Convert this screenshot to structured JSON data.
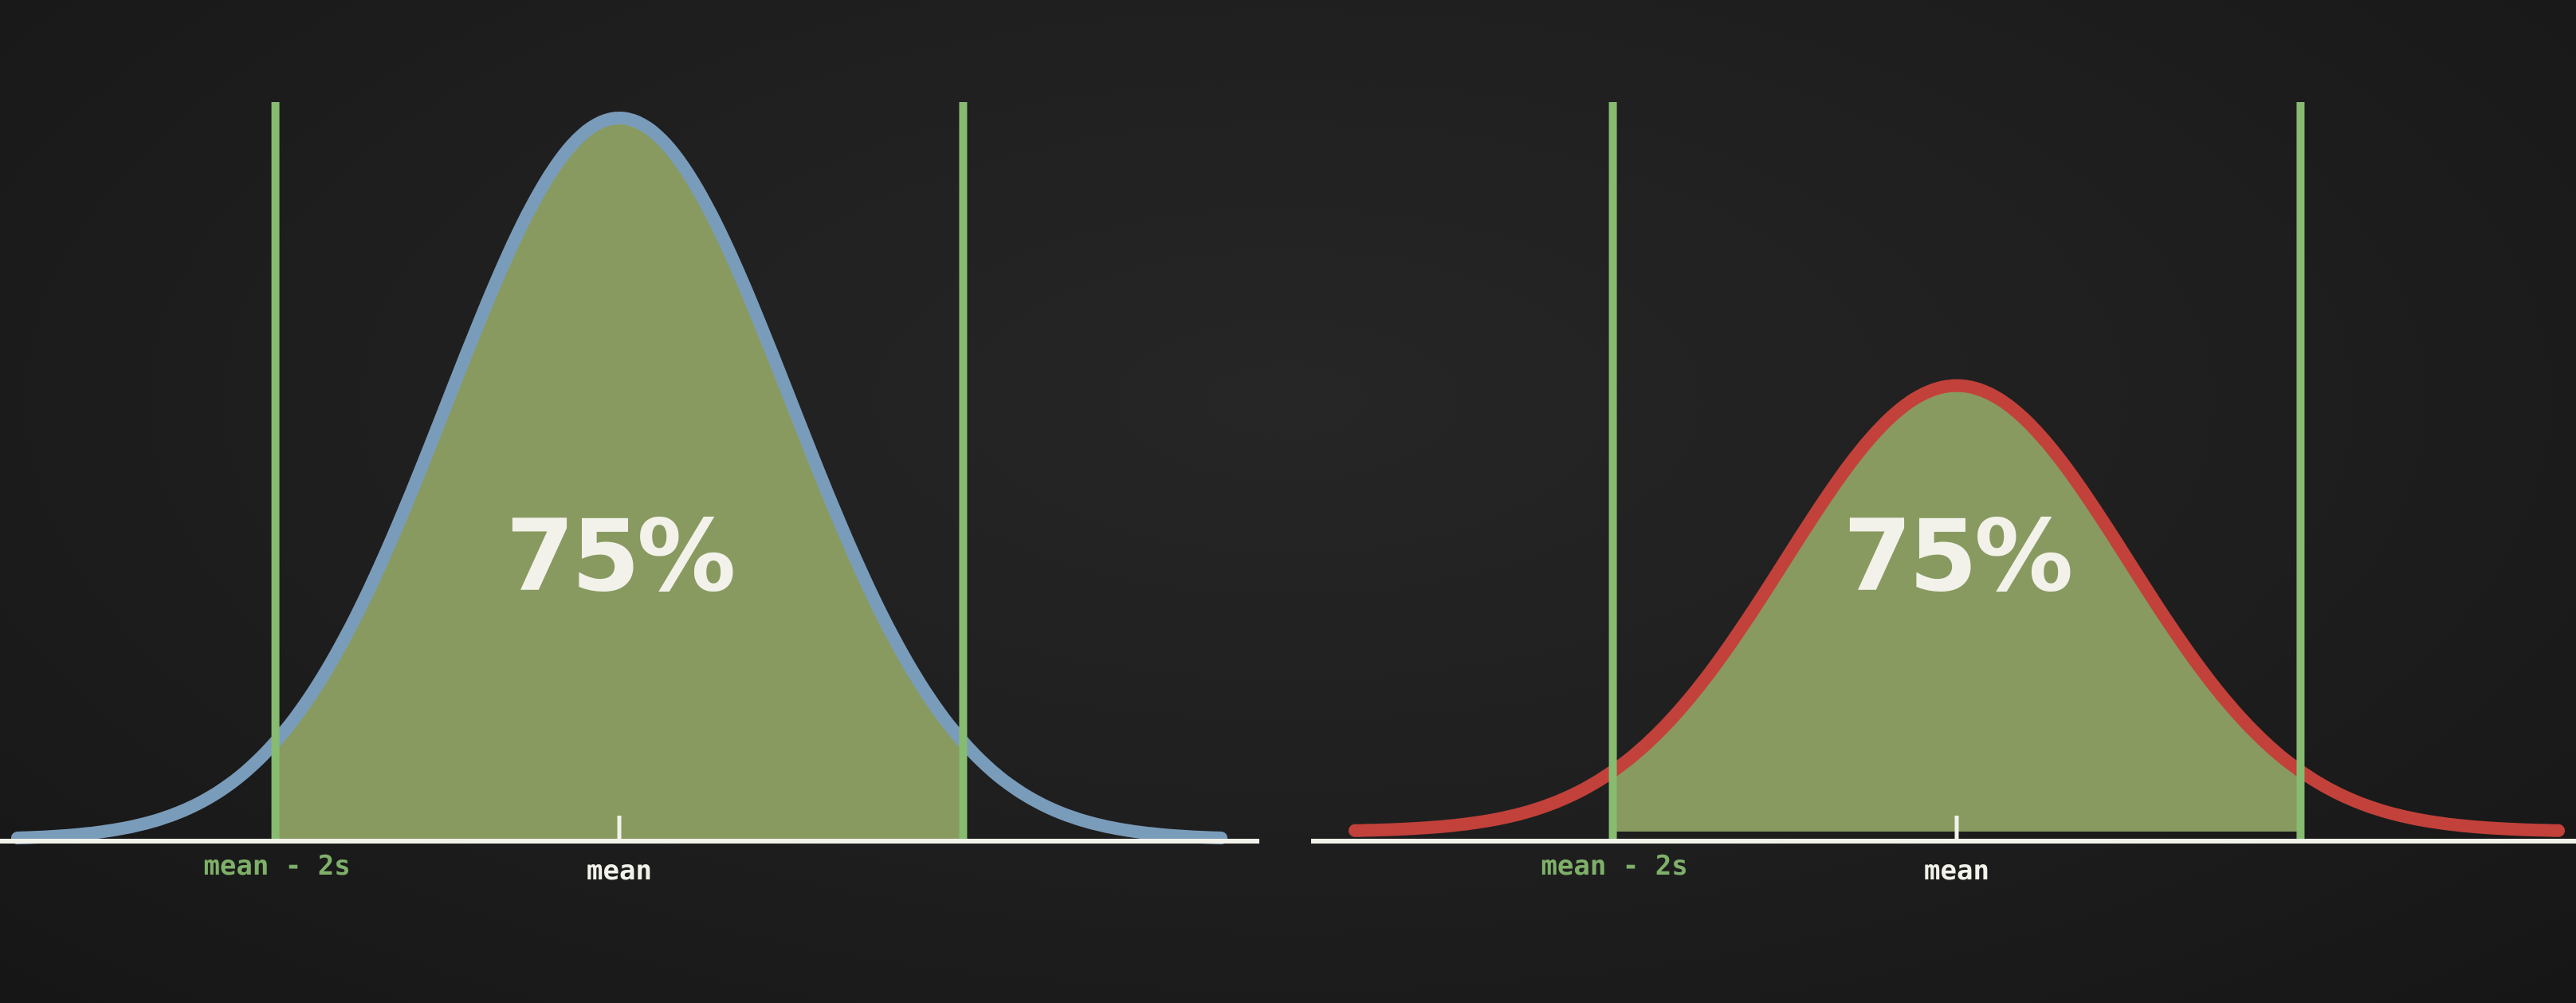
{
  "colors": {
    "background": "#1e1e1e",
    "axis": "#f2f2ea",
    "fill": "#889a60",
    "bound_line": "#86bb70",
    "left_curve": "#7a9cbb",
    "right_curve": "#c2413a",
    "mean_label": "#f2f2ea",
    "bound_label": "#7fb06a"
  },
  "chart_data": [
    {
      "type": "area",
      "curve": "normal distribution",
      "mean": 0,
      "sd": 1,
      "xlim": [
        -3.5,
        3.5
      ],
      "ylim": [
        0,
        0.4
      ],
      "peak_density": 0.4,
      "shaded_interval": [
        -2,
        2
      ],
      "vertical_lines": [
        -2,
        2
      ],
      "curve_color": "#7a9cbb",
      "annotation": "75%",
      "tick_labels": [
        {
          "x": -2,
          "label": "mean - 2s",
          "has_tick": false
        },
        {
          "x": 0,
          "label": "mean",
          "has_tick": true
        }
      ]
    },
    {
      "type": "area",
      "curve": "normal distribution",
      "mean": 0,
      "sd": 1,
      "xlim": [
        -3.5,
        3.5
      ],
      "ylim": [
        0,
        0.4
      ],
      "peak_density": 0.25,
      "shaded_interval": [
        -2,
        2
      ],
      "vertical_lines": [
        -2,
        2
      ],
      "curve_color": "#c2413a",
      "annotation": "75%",
      "tick_labels": [
        {
          "x": -2,
          "label": "mean - 2s",
          "has_tick": false
        },
        {
          "x": 0,
          "label": "mean",
          "has_tick": true
        }
      ]
    }
  ]
}
